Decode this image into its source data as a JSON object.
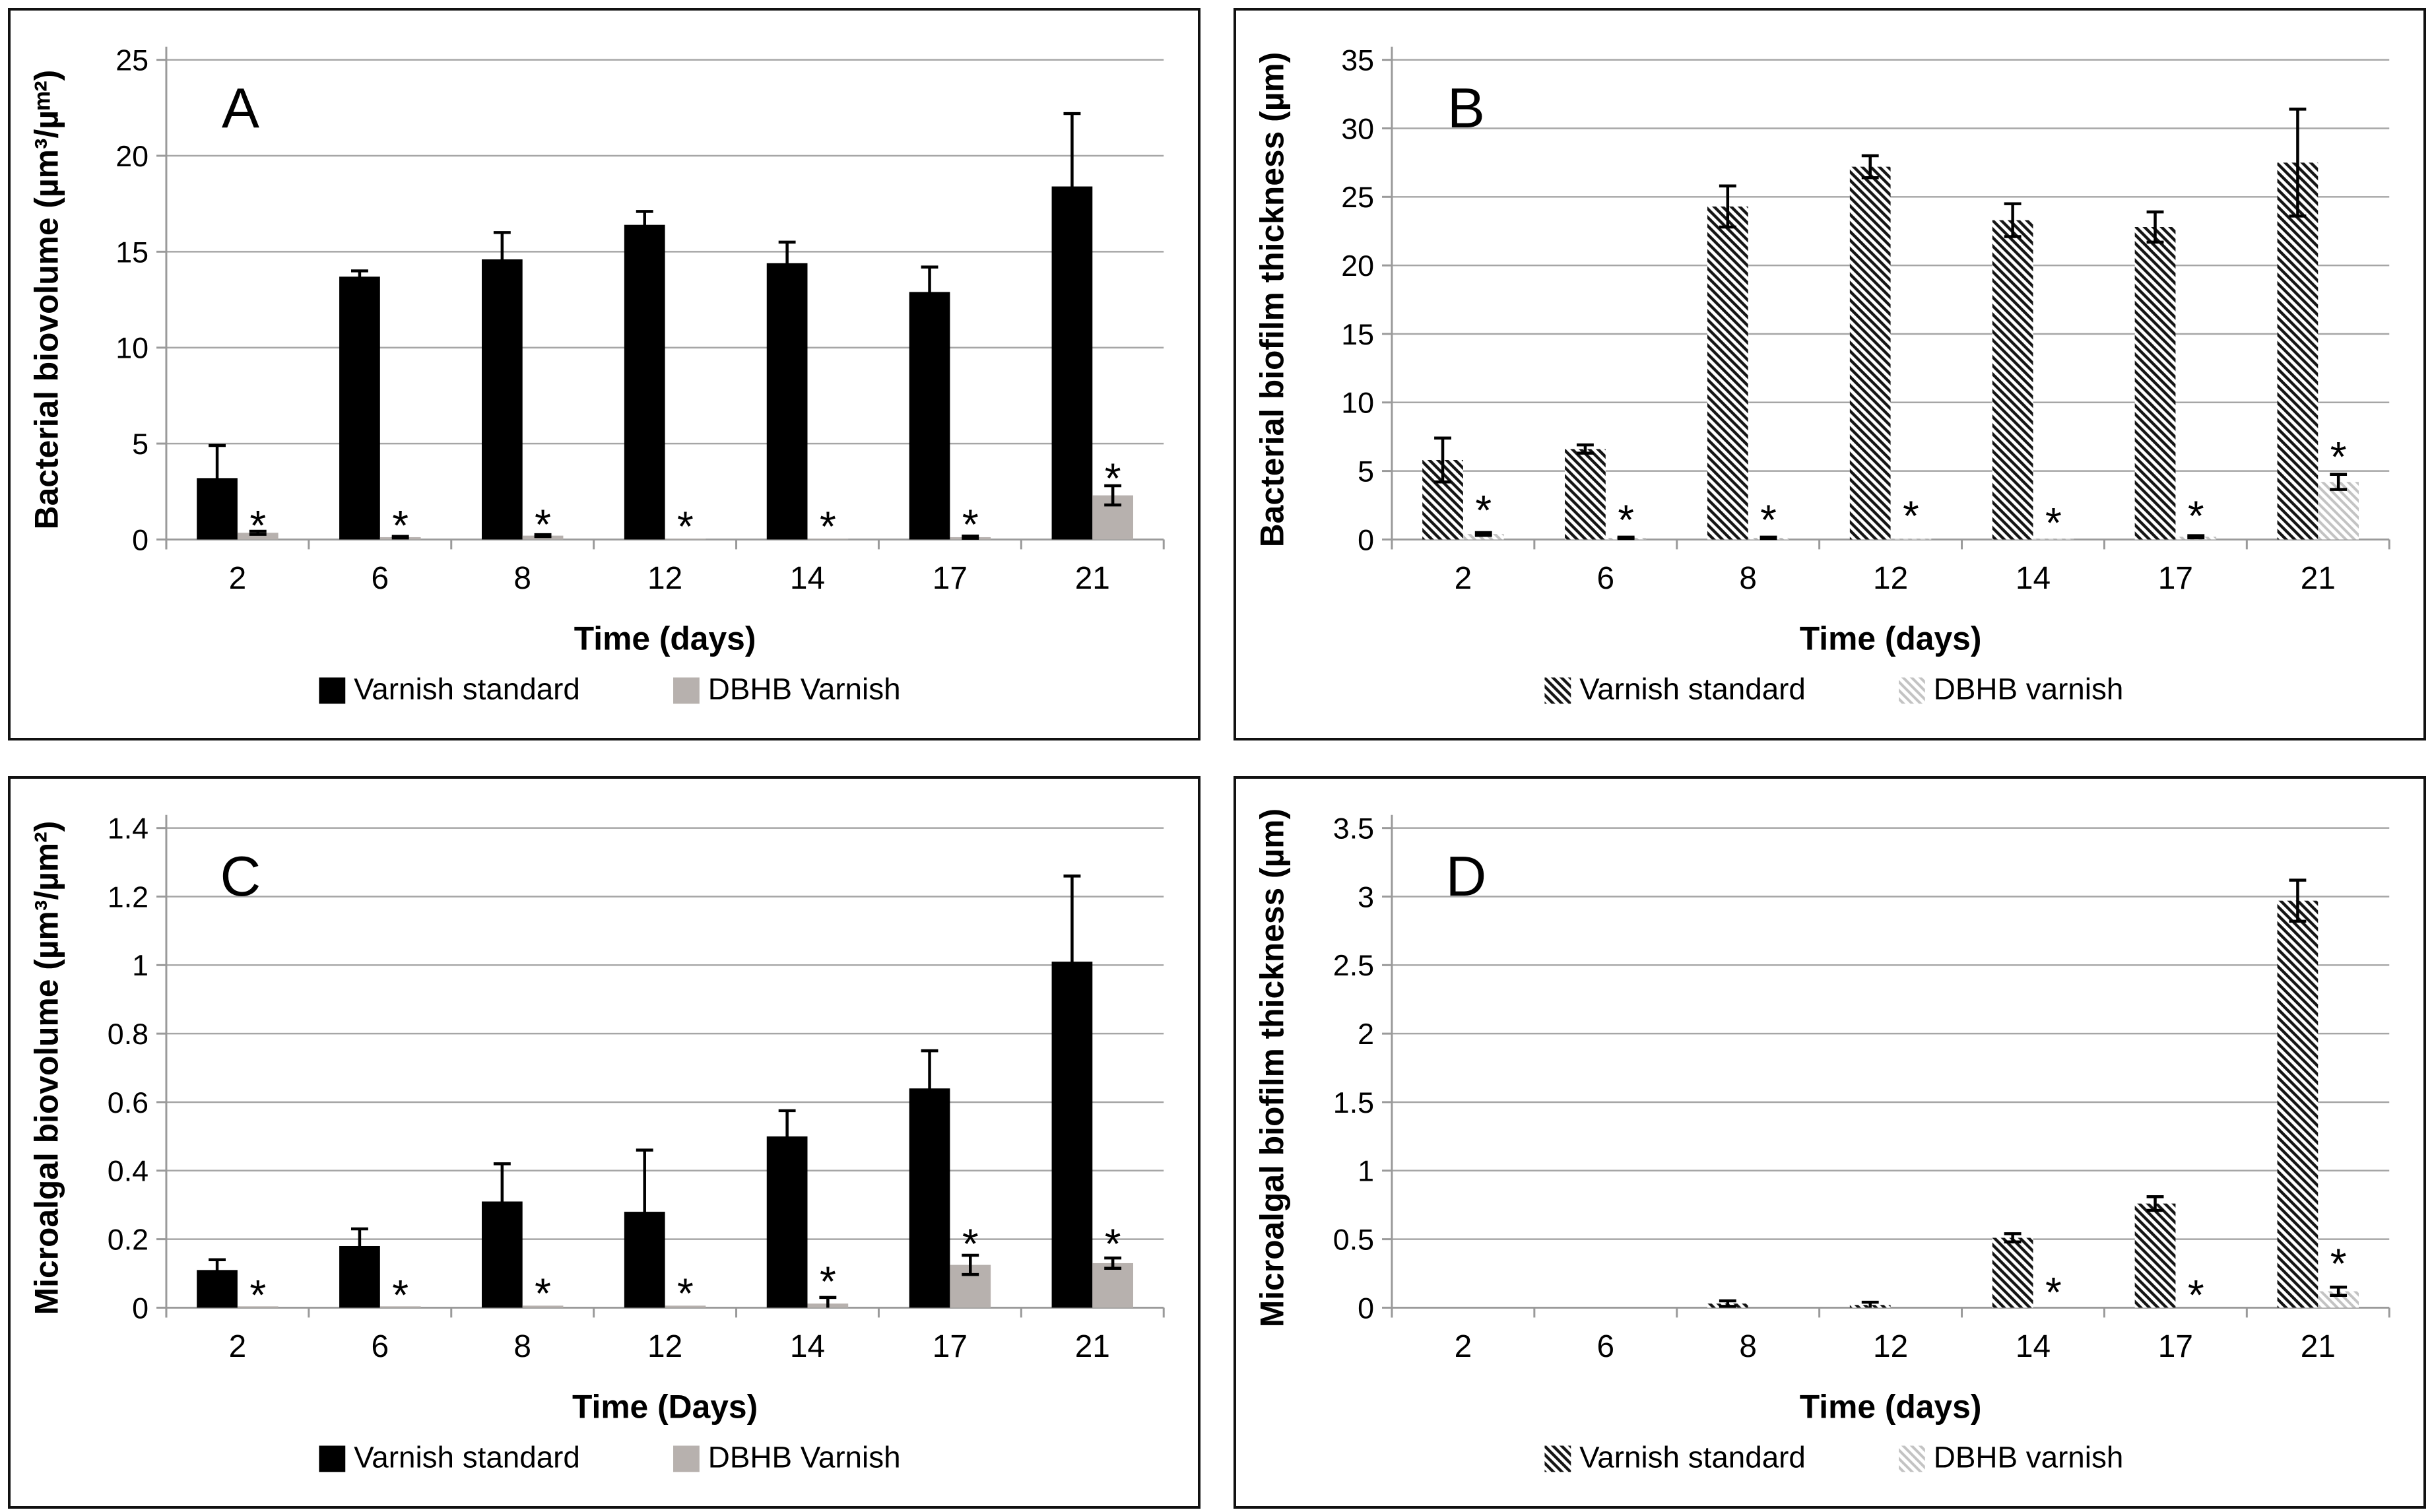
{
  "figure": {
    "description_title": "Four-panel biofilm bar chart figure",
    "panel_letters": [
      "A",
      "B",
      "C",
      "D"
    ]
  },
  "colors": {
    "bar_black": "#000000",
    "bar_gray": "#b7b1ae",
    "hatch_dark": "#141414",
    "hatch_light": "#c3c3c3",
    "gridline": "#a6a6a6",
    "axis": "#9a9a9a",
    "error_bar": "#000000",
    "text": "#000000",
    "panel_border": "#111111",
    "background": "#ffffff"
  },
  "chart_data": [
    {
      "panel": "A",
      "type": "bar",
      "fill_style": "solid",
      "title": "",
      "ylabel": "Bacterial biovolume  (µm³/µᵐ²)",
      "xlabel": "Time (days)",
      "ylim": [
        0,
        25
      ],
      "ystep": 5,
      "grid": true,
      "legend_position": "bottom",
      "categories": [
        "2",
        "6",
        "8",
        "12",
        "14",
        "17",
        "21"
      ],
      "series": [
        {
          "name": "Varnish standard",
          "values": [
            3.2,
            13.7,
            14.6,
            16.4,
            14.4,
            12.9,
            18.4
          ],
          "errors": [
            1.7,
            0.3,
            1.4,
            0.7,
            1.1,
            1.3,
            3.8
          ]
        },
        {
          "name": "DBHB Varnish",
          "values": [
            0.35,
            0.12,
            0.2,
            0.04,
            0.04,
            0.12,
            2.3
          ],
          "errors": [
            0.08,
            0.04,
            0.05,
            0,
            0,
            0.06,
            0.5
          ]
        }
      ],
      "significance_marker": "*",
      "asterisk_y": [
        1.15,
        1.15,
        1.2,
        1.1,
        1.1,
        1.2,
        3.6
      ]
    },
    {
      "panel": "B",
      "type": "bar",
      "fill_style": "hatch",
      "title": "",
      "ylabel": "Bacterial biofilm thickness (µm)",
      "xlabel": "Time (days)",
      "ylim": [
        0,
        35
      ],
      "ystep": 5,
      "grid": true,
      "legend_position": "bottom",
      "categories": [
        "2",
        "6",
        "8",
        "12",
        "14",
        "17",
        "21"
      ],
      "series": [
        {
          "name": "Varnish standard",
          "values": [
            5.8,
            6.6,
            24.3,
            27.2,
            23.3,
            22.8,
            27.5
          ],
          "errors": [
            1.6,
            0.3,
            1.5,
            0.8,
            1.2,
            1.1,
            3.9
          ]
        },
        {
          "name": "DBHB varnish",
          "values": [
            0.4,
            0.12,
            0.12,
            0.05,
            0.05,
            0.2,
            4.2
          ],
          "errors": [
            0.1,
            0.05,
            0.05,
            0,
            0,
            0.08,
            0.55
          ]
        }
      ],
      "significance_marker": "*",
      "asterisk_y": [
        2.7,
        2.0,
        2.0,
        2.3,
        1.8,
        2.3,
        6.6
      ]
    },
    {
      "panel": "C",
      "type": "bar",
      "fill_style": "solid",
      "title": "",
      "ylabel": "Microalgal biovolume (µm³/µm²)",
      "xlabel": "Time (Days)",
      "ylim": [
        0,
        1.4
      ],
      "ystep": 0.2,
      "grid": true,
      "legend_position": "bottom",
      "categories": [
        "2",
        "6",
        "8",
        "12",
        "14",
        "17",
        "21"
      ],
      "series": [
        {
          "name": "Varnish standard",
          "values": [
            0.11,
            0.18,
            0.31,
            0.28,
            0.5,
            0.64,
            1.01
          ],
          "errors": [
            0.03,
            0.05,
            0.11,
            0.18,
            0.075,
            0.11,
            0.25
          ]
        },
        {
          "name": "DBHB Varnish",
          "values": [
            0.004,
            0.004,
            0.006,
            0.006,
            0.012,
            0.125,
            0.13
          ],
          "errors": [
            0,
            0,
            0,
            0,
            0.018,
            0.028,
            0.015
          ]
        }
      ],
      "significance_marker": "*",
      "asterisk_y": [
        0.06,
        0.06,
        0.065,
        0.065,
        0.1,
        0.21,
        0.21
      ]
    },
    {
      "panel": "D",
      "type": "bar",
      "fill_style": "hatch",
      "title": "",
      "ylabel": "Microalgal biofilm thickness (µm)",
      "xlabel": "Time (days)",
      "ylim": [
        0,
        3.5
      ],
      "ystep": 0.5,
      "grid": true,
      "legend_position": "bottom",
      "categories": [
        "2",
        "6",
        "8",
        "12",
        "14",
        "17",
        "21"
      ],
      "series": [
        {
          "name": "Varnish standard",
          "values": [
            0,
            0,
            0.03,
            0.02,
            0.51,
            0.76,
            2.97
          ],
          "errors": [
            0,
            0,
            0.02,
            0.02,
            0.03,
            0.05,
            0.15
          ]
        },
        {
          "name": "DBHB varnish",
          "values": [
            0,
            0,
            0,
            0,
            0,
            0,
            0.12
          ],
          "errors": [
            0,
            0,
            0,
            0,
            0,
            0,
            0.03
          ]
        }
      ],
      "significance_marker": "*",
      "asterisk_y": [
        null,
        null,
        null,
        null,
        0.17,
        0.15,
        0.38
      ]
    }
  ]
}
